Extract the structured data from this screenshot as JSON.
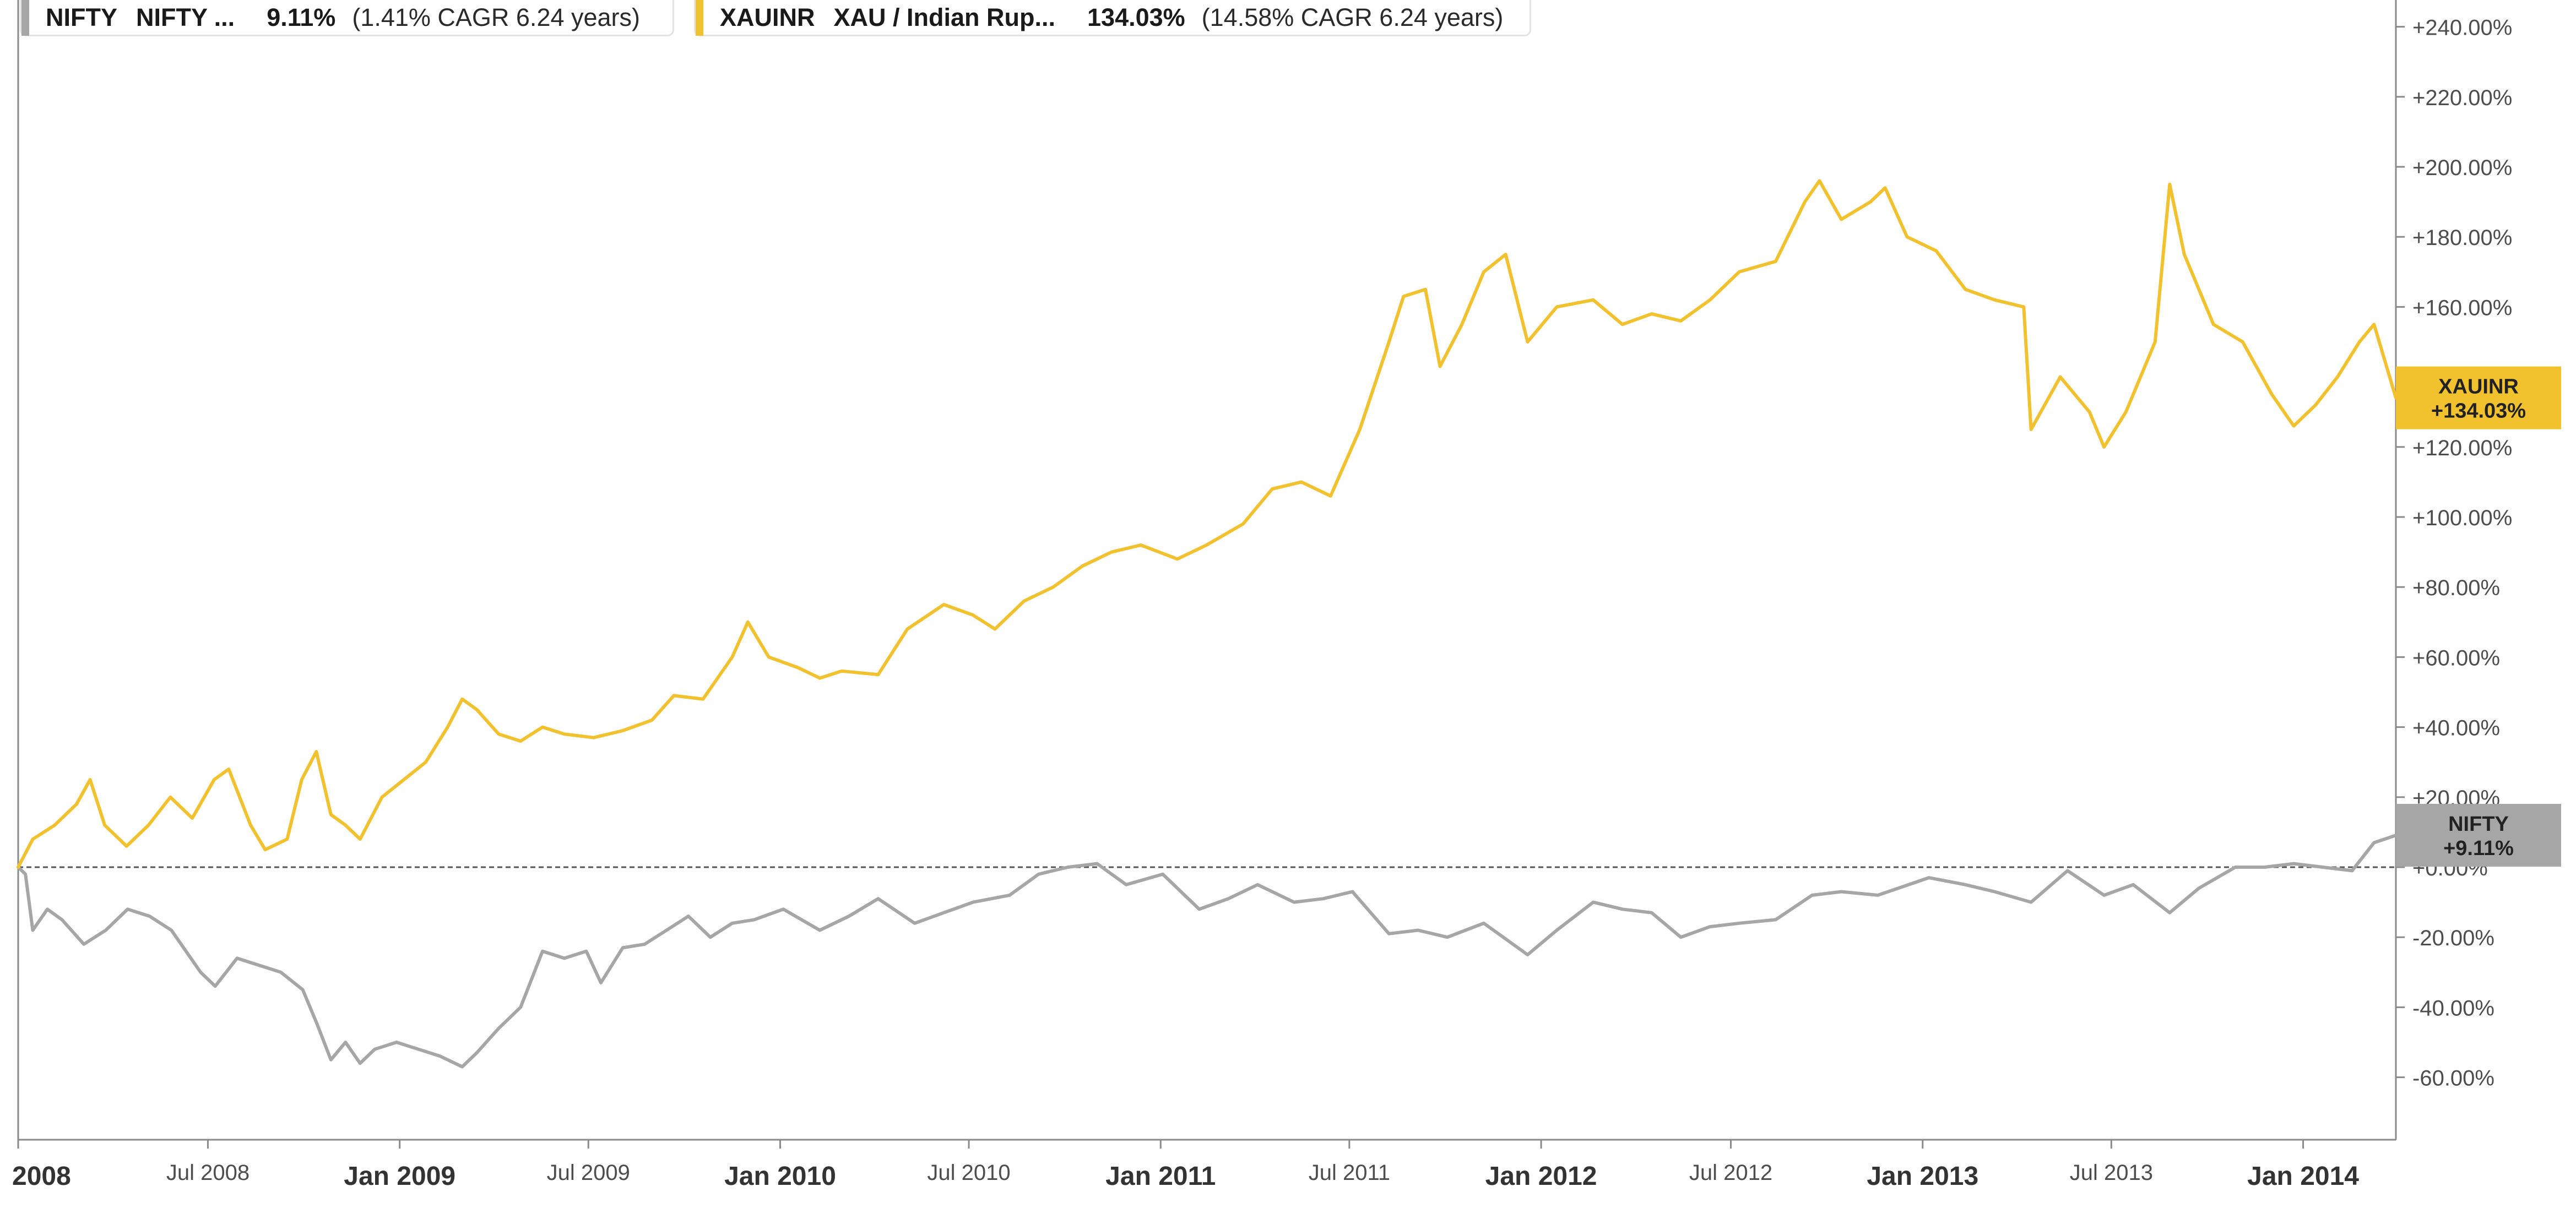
{
  "chart_data": {
    "type": "line",
    "title": "",
    "xlabel": "",
    "ylabel": "",
    "x_range": [
      "2008-01-01",
      "2014-03-31"
    ],
    "ylim": [
      -70,
      245
    ],
    "y_ticks": [
      {
        "value": 240,
        "label": "+240.00%"
      },
      {
        "value": 220,
        "label": "+220.00%"
      },
      {
        "value": 200,
        "label": "+200.00%"
      },
      {
        "value": 180,
        "label": "+180.00%"
      },
      {
        "value": 160,
        "label": "+160.00%"
      },
      {
        "value": 120,
        "label": "+120.00%"
      },
      {
        "value": 100,
        "label": "+100.00%"
      },
      {
        "value": 80,
        "label": "+80.00%"
      },
      {
        "value": 60,
        "label": "+60.00%"
      },
      {
        "value": 40,
        "label": "+40.00%"
      },
      {
        "value": 20,
        "label": "+20.00%"
      },
      {
        "value": 0,
        "label": "+0.00%"
      },
      {
        "value": -20,
        "label": "-20.00%"
      },
      {
        "value": -40,
        "label": "-40.00%"
      },
      {
        "value": -60,
        "label": "-60.00%"
      }
    ],
    "x_ticks": [
      {
        "date": "2008-01-01",
        "label": "2008",
        "major": true
      },
      {
        "date": "2008-07-01",
        "label": "Jul 2008",
        "major": false
      },
      {
        "date": "2009-01-01",
        "label": "Jan 2009",
        "major": true
      },
      {
        "date": "2009-07-01",
        "label": "Jul 2009",
        "major": false
      },
      {
        "date": "2010-01-01",
        "label": "Jan 2010",
        "major": true
      },
      {
        "date": "2010-07-01",
        "label": "Jul 2010",
        "major": false
      },
      {
        "date": "2011-01-01",
        "label": "Jan 2011",
        "major": true
      },
      {
        "date": "2011-07-01",
        "label": "Jul 2011",
        "major": false
      },
      {
        "date": "2012-01-01",
        "label": "Jan 2012",
        "major": true
      },
      {
        "date": "2012-07-01",
        "label": "Jul 2012",
        "major": false
      },
      {
        "date": "2013-01-01",
        "label": "Jan 2013",
        "major": true
      },
      {
        "date": "2013-07-01",
        "label": "Jul 2013",
        "major": false
      },
      {
        "date": "2014-01-01",
        "label": "Jan 2014",
        "major": true
      }
    ],
    "baseline": 0,
    "grid": false,
    "legend_position": "top-left",
    "series": [
      {
        "symbol": "NIFTY",
        "name": "NIFTY ...",
        "change": "9.11%",
        "cagr": "(1.41% CAGR 6.24 years)",
        "last_label": "+9.11%",
        "color": "#a6a6a6",
        "points": [
          [
            "2008-01-01",
            0
          ],
          [
            "2008-01-08",
            -2
          ],
          [
            "2008-01-15",
            -18
          ],
          [
            "2008-01-29",
            -12
          ],
          [
            "2008-02-12",
            -15
          ],
          [
            "2008-03-04",
            -22
          ],
          [
            "2008-03-25",
            -18
          ],
          [
            "2008-04-15",
            -12
          ],
          [
            "2008-05-06",
            -14
          ],
          [
            "2008-05-27",
            -18
          ],
          [
            "2008-06-24",
            -30
          ],
          [
            "2008-07-08",
            -34
          ],
          [
            "2008-07-29",
            -26
          ],
          [
            "2008-08-19",
            -28
          ],
          [
            "2008-09-09",
            -30
          ],
          [
            "2008-09-30",
            -35
          ],
          [
            "2008-10-14",
            -45
          ],
          [
            "2008-10-27",
            -55
          ],
          [
            "2008-11-10",
            -50
          ],
          [
            "2008-11-24",
            -56
          ],
          [
            "2008-12-08",
            -52
          ],
          [
            "2008-12-29",
            -50
          ],
          [
            "2009-01-19",
            -52
          ],
          [
            "2009-02-09",
            -54
          ],
          [
            "2009-03-02",
            -57
          ],
          [
            "2009-03-16",
            -53
          ],
          [
            "2009-04-06",
            -46
          ],
          [
            "2009-04-27",
            -40
          ],
          [
            "2009-05-18",
            -24
          ],
          [
            "2009-06-08",
            -26
          ],
          [
            "2009-06-29",
            -24
          ],
          [
            "2009-07-13",
            -33
          ],
          [
            "2009-08-03",
            -23
          ],
          [
            "2009-08-24",
            -22
          ],
          [
            "2009-09-14",
            -18
          ],
          [
            "2009-10-05",
            -14
          ],
          [
            "2009-10-26",
            -20
          ],
          [
            "2009-11-16",
            -16
          ],
          [
            "2009-12-07",
            -15
          ],
          [
            "2010-01-04",
            -12
          ],
          [
            "2010-02-08",
            -18
          ],
          [
            "2010-03-08",
            -14
          ],
          [
            "2010-04-05",
            -9
          ],
          [
            "2010-05-10",
            -16
          ],
          [
            "2010-06-07",
            -13
          ],
          [
            "2010-07-05",
            -10
          ],
          [
            "2010-08-09",
            -8
          ],
          [
            "2010-09-06",
            -2
          ],
          [
            "2010-10-04",
            0
          ],
          [
            "2010-11-01",
            1
          ],
          [
            "2010-11-29",
            -5
          ],
          [
            "2011-01-03",
            -2
          ],
          [
            "2011-02-07",
            -12
          ],
          [
            "2011-03-07",
            -9
          ],
          [
            "2011-04-04",
            -5
          ],
          [
            "2011-05-09",
            -10
          ],
          [
            "2011-06-06",
            -9
          ],
          [
            "2011-07-04",
            -7
          ],
          [
            "2011-08-08",
            -19
          ],
          [
            "2011-09-05",
            -18
          ],
          [
            "2011-10-03",
            -20
          ],
          [
            "2011-11-07",
            -16
          ],
          [
            "2011-12-19",
            -25
          ],
          [
            "2012-01-16",
            -18
          ],
          [
            "2012-02-20",
            -10
          ],
          [
            "2012-03-19",
            -12
          ],
          [
            "2012-04-16",
            -13
          ],
          [
            "2012-05-14",
            -20
          ],
          [
            "2012-06-11",
            -17
          ],
          [
            "2012-07-09",
            -16
          ],
          [
            "2012-08-13",
            -15
          ],
          [
            "2012-09-17",
            -8
          ],
          [
            "2012-10-15",
            -7
          ],
          [
            "2012-11-19",
            -8
          ],
          [
            "2013-01-07",
            -3
          ],
          [
            "2013-02-11",
            -5
          ],
          [
            "2013-03-11",
            -7
          ],
          [
            "2013-04-15",
            -10
          ],
          [
            "2013-05-20",
            -1
          ],
          [
            "2013-06-24",
            -8
          ],
          [
            "2013-07-22",
            -5
          ],
          [
            "2013-08-26",
            -13
          ],
          [
            "2013-09-23",
            -6
          ],
          [
            "2013-10-28",
            0
          ],
          [
            "2013-11-25",
            0
          ],
          [
            "2013-12-23",
            1
          ],
          [
            "2014-01-20",
            0
          ],
          [
            "2014-02-17",
            -1
          ],
          [
            "2014-03-10",
            7
          ],
          [
            "2014-03-31",
            9.11
          ]
        ]
      },
      {
        "symbol": "XAUINR",
        "name": "XAU / Indian Rup...",
        "change": "134.03%",
        "cagr": "(14.58% CAGR 6.24 years)",
        "last_label": "+134.03%",
        "color": "#f2c12e",
        "points": [
          [
            "2008-01-01",
            0
          ],
          [
            "2008-01-15",
            8
          ],
          [
            "2008-02-05",
            12
          ],
          [
            "2008-02-26",
            18
          ],
          [
            "2008-03-10",
            25
          ],
          [
            "2008-03-24",
            12
          ],
          [
            "2008-04-14",
            6
          ],
          [
            "2008-05-05",
            12
          ],
          [
            "2008-05-26",
            20
          ],
          [
            "2008-06-16",
            14
          ],
          [
            "2008-07-07",
            25
          ],
          [
            "2008-07-21",
            28
          ],
          [
            "2008-08-11",
            12
          ],
          [
            "2008-08-25",
            5
          ],
          [
            "2008-09-15",
            8
          ],
          [
            "2008-09-29",
            25
          ],
          [
            "2008-10-13",
            33
          ],
          [
            "2008-10-27",
            15
          ],
          [
            "2008-11-10",
            12
          ],
          [
            "2008-11-24",
            8
          ],
          [
            "2008-12-15",
            20
          ],
          [
            "2009-01-05",
            25
          ],
          [
            "2009-01-26",
            30
          ],
          [
            "2009-02-16",
            40
          ],
          [
            "2009-03-02",
            48
          ],
          [
            "2009-03-16",
            45
          ],
          [
            "2009-04-06",
            38
          ],
          [
            "2009-04-27",
            36
          ],
          [
            "2009-05-18",
            40
          ],
          [
            "2009-06-08",
            38
          ],
          [
            "2009-07-06",
            37
          ],
          [
            "2009-08-03",
            39
          ],
          [
            "2009-08-31",
            42
          ],
          [
            "2009-09-21",
            49
          ],
          [
            "2009-10-19",
            48
          ],
          [
            "2009-11-16",
            60
          ],
          [
            "2009-12-01",
            70
          ],
          [
            "2009-12-21",
            60
          ],
          [
            "2010-01-18",
            57
          ],
          [
            "2010-02-08",
            54
          ],
          [
            "2010-03-01",
            56
          ],
          [
            "2010-04-05",
            55
          ],
          [
            "2010-05-03",
            68
          ],
          [
            "2010-06-07",
            75
          ],
          [
            "2010-07-05",
            72
          ],
          [
            "2010-07-26",
            68
          ],
          [
            "2010-08-23",
            76
          ],
          [
            "2010-09-20",
            80
          ],
          [
            "2010-10-18",
            86
          ],
          [
            "2010-11-15",
            90
          ],
          [
            "2010-12-13",
            92
          ],
          [
            "2011-01-17",
            88
          ],
          [
            "2011-02-14",
            92
          ],
          [
            "2011-03-21",
            98
          ],
          [
            "2011-04-18",
            108
          ],
          [
            "2011-05-16",
            110
          ],
          [
            "2011-06-13",
            106
          ],
          [
            "2011-07-11",
            125
          ],
          [
            "2011-08-08",
            150
          ],
          [
            "2011-08-22",
            163
          ],
          [
            "2011-09-12",
            165
          ],
          [
            "2011-09-26",
            143
          ],
          [
            "2011-10-17",
            155
          ],
          [
            "2011-11-07",
            170
          ],
          [
            "2011-11-28",
            175
          ],
          [
            "2011-12-19",
            150
          ],
          [
            "2012-01-16",
            160
          ],
          [
            "2012-02-20",
            162
          ],
          [
            "2012-03-19",
            155
          ],
          [
            "2012-04-16",
            158
          ],
          [
            "2012-05-14",
            156
          ],
          [
            "2012-06-11",
            162
          ],
          [
            "2012-07-09",
            170
          ],
          [
            "2012-08-13",
            173
          ],
          [
            "2012-09-10",
            190
          ],
          [
            "2012-09-24",
            196
          ],
          [
            "2012-10-15",
            185
          ],
          [
            "2012-11-12",
            190
          ],
          [
            "2012-11-26",
            194
          ],
          [
            "2012-12-17",
            180
          ],
          [
            "2013-01-14",
            176
          ],
          [
            "2013-02-11",
            165
          ],
          [
            "2013-03-11",
            162
          ],
          [
            "2013-04-08",
            160
          ],
          [
            "2013-04-15",
            125
          ],
          [
            "2013-05-13",
            140
          ],
          [
            "2013-06-10",
            130
          ],
          [
            "2013-06-24",
            120
          ],
          [
            "2013-07-15",
            130
          ],
          [
            "2013-08-12",
            150
          ],
          [
            "2013-08-26",
            195
          ],
          [
            "2013-09-09",
            175
          ],
          [
            "2013-10-07",
            155
          ],
          [
            "2013-11-04",
            150
          ],
          [
            "2013-12-02",
            135
          ],
          [
            "2013-12-23",
            126
          ],
          [
            "2014-01-13",
            132
          ],
          [
            "2014-02-03",
            140
          ],
          [
            "2014-02-24",
            150
          ],
          [
            "2014-03-10",
            155
          ],
          [
            "2014-03-31",
            134.03
          ]
        ]
      }
    ]
  }
}
